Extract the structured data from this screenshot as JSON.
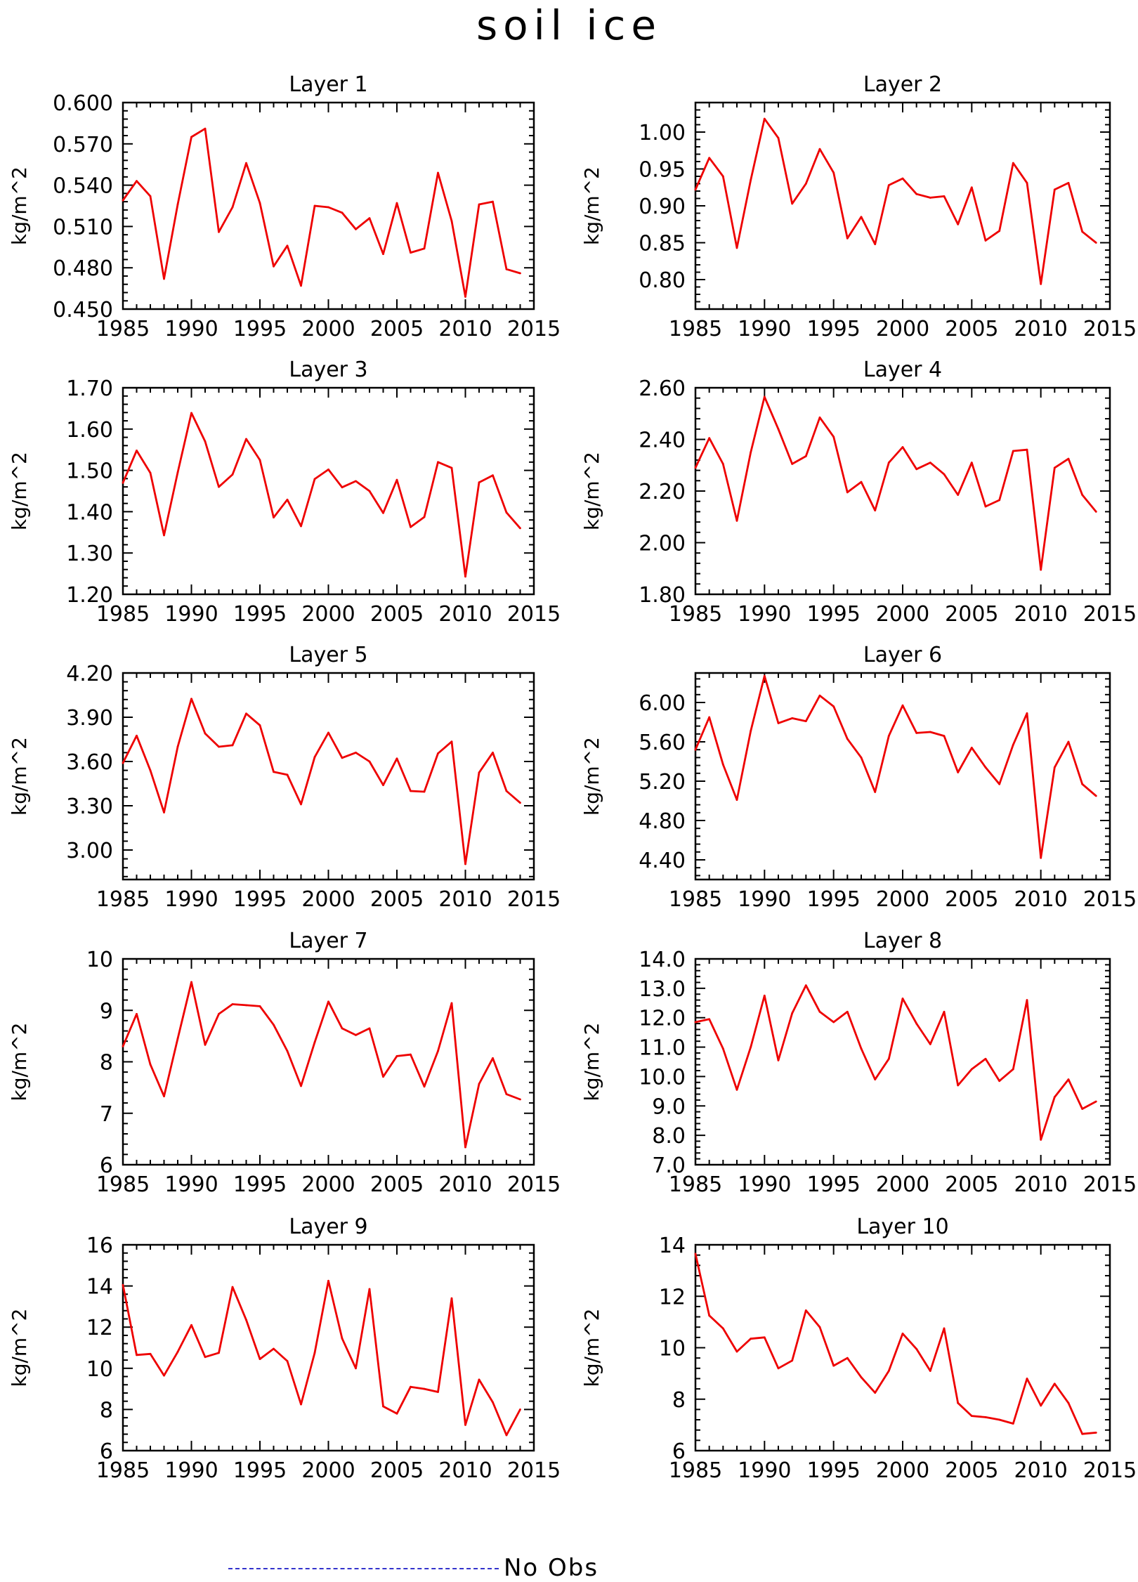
{
  "title": "soil ice",
  "legend": {
    "label": "No Obs",
    "color": "#3333cc",
    "style": "dashed"
  },
  "series_color": "#ee0000",
  "chart_data": [
    {
      "type": "line",
      "title": "Layer 1",
      "ylabel": "kg/m^2",
      "xlim": [
        1985,
        2015
      ],
      "ylim": [
        0.45,
        0.6
      ],
      "xticks": [
        1985,
        1990,
        1995,
        2000,
        2005,
        2010,
        2015
      ],
      "yticks": [
        "0.450",
        "0.480",
        "0.510",
        "0.540",
        "0.570",
        "0.600"
      ],
      "x": [
        1985,
        1986,
        1987,
        1988,
        1989,
        1990,
        1991,
        1992,
        1993,
        1994,
        1995,
        1996,
        1997,
        1998,
        1999,
        2000,
        2001,
        2002,
        2003,
        2004,
        2005,
        2006,
        2007,
        2008,
        2009,
        2010,
        2011,
        2012,
        2013,
        2014
      ],
      "values": [
        0.529,
        0.543,
        0.532,
        0.472,
        0.526,
        0.575,
        0.581,
        0.506,
        0.524,
        0.556,
        0.527,
        0.481,
        0.496,
        0.467,
        0.525,
        0.524,
        0.52,
        0.508,
        0.516,
        0.49,
        0.527,
        0.491,
        0.494,
        0.549,
        0.514,
        0.459,
        0.526,
        0.528,
        0.479,
        0.476
      ]
    },
    {
      "type": "line",
      "title": "Layer 2",
      "ylabel": "kg/m^2",
      "xlim": [
        1985,
        2015
      ],
      "ylim": [
        0.76,
        1.04
      ],
      "xticks": [
        1985,
        1990,
        1995,
        2000,
        2005,
        2010,
        2015
      ],
      "yticks": [
        "0.80",
        "0.85",
        "0.90",
        "0.95",
        "1.00"
      ],
      "x": [
        1985,
        1986,
        1987,
        1988,
        1989,
        1990,
        1991,
        1992,
        1993,
        1994,
        1995,
        1996,
        1997,
        1998,
        1999,
        2000,
        2001,
        2002,
        2003,
        2004,
        2005,
        2006,
        2007,
        2008,
        2009,
        2010,
        2011,
        2012,
        2013,
        2014
      ],
      "values": [
        0.922,
        0.965,
        0.94,
        0.843,
        0.935,
        1.018,
        0.992,
        0.903,
        0.93,
        0.977,
        0.945,
        0.856,
        0.885,
        0.848,
        0.928,
        0.937,
        0.916,
        0.911,
        0.913,
        0.875,
        0.925,
        0.853,
        0.866,
        0.958,
        0.931,
        0.794,
        0.922,
        0.931,
        0.865,
        0.85
      ]
    },
    {
      "type": "line",
      "title": "Layer 3",
      "ylabel": "kg/m^2",
      "xlim": [
        1985,
        2015
      ],
      "ylim": [
        1.2,
        1.7
      ],
      "xticks": [
        1985,
        1990,
        1995,
        2000,
        2005,
        2010,
        2015
      ],
      "yticks": [
        "1.20",
        "1.30",
        "1.40",
        "1.50",
        "1.60",
        "1.70"
      ],
      "x": [
        1985,
        1986,
        1987,
        1988,
        1989,
        1990,
        1991,
        1992,
        1993,
        1994,
        1995,
        1996,
        1997,
        1998,
        1999,
        2000,
        2001,
        2002,
        2003,
        2004,
        2005,
        2006,
        2007,
        2008,
        2009,
        2010,
        2011,
        2012,
        2013,
        2014
      ],
      "values": [
        1.47,
        1.548,
        1.494,
        1.343,
        1.495,
        1.639,
        1.57,
        1.46,
        1.49,
        1.576,
        1.525,
        1.386,
        1.429,
        1.365,
        1.479,
        1.502,
        1.459,
        1.474,
        1.45,
        1.397,
        1.477,
        1.363,
        1.387,
        1.52,
        1.506,
        1.243,
        1.471,
        1.488,
        1.398,
        1.36
      ]
    },
    {
      "type": "line",
      "title": "Layer 4",
      "ylabel": "kg/m^2",
      "xlim": [
        1985,
        2015
      ],
      "ylim": [
        1.8,
        2.6
      ],
      "xticks": [
        1985,
        1990,
        1995,
        2000,
        2005,
        2010,
        2015
      ],
      "yticks": [
        "1.80",
        "2.00",
        "2.20",
        "2.40",
        "2.60"
      ],
      "x": [
        1985,
        1986,
        1987,
        1988,
        1989,
        1990,
        1991,
        1992,
        1993,
        1994,
        1995,
        1996,
        1997,
        1998,
        1999,
        2000,
        2001,
        2002,
        2003,
        2004,
        2005,
        2006,
        2007,
        2008,
        2009,
        2010,
        2011,
        2012,
        2013,
        2014
      ],
      "values": [
        2.29,
        2.405,
        2.305,
        2.085,
        2.35,
        2.565,
        2.44,
        2.305,
        2.335,
        2.485,
        2.41,
        2.195,
        2.235,
        2.125,
        2.31,
        2.37,
        2.285,
        2.31,
        2.265,
        2.185,
        2.31,
        2.14,
        2.165,
        2.355,
        2.36,
        1.895,
        2.29,
        2.325,
        2.185,
        2.12
      ]
    },
    {
      "type": "line",
      "title": "Layer 5",
      "ylabel": "kg/m^2",
      "xlim": [
        1985,
        2015
      ],
      "ylim": [
        2.8,
        4.2
      ],
      "xticks": [
        1985,
        1990,
        1995,
        2000,
        2005,
        2010,
        2015
      ],
      "yticks": [
        "3.00",
        "3.30",
        "3.60",
        "3.90",
        "4.20"
      ],
      "x": [
        1985,
        1986,
        1987,
        1988,
        1989,
        1990,
        1991,
        1992,
        1993,
        1994,
        1995,
        1996,
        1997,
        1998,
        1999,
        2000,
        2001,
        2002,
        2003,
        2004,
        2005,
        2006,
        2007,
        2008,
        2009,
        2010,
        2011,
        2012,
        2013,
        2014
      ],
      "values": [
        3.59,
        3.775,
        3.54,
        3.255,
        3.7,
        4.025,
        3.79,
        3.7,
        3.71,
        3.925,
        3.845,
        3.53,
        3.51,
        3.31,
        3.63,
        3.795,
        3.625,
        3.66,
        3.6,
        3.44,
        3.62,
        3.4,
        3.395,
        3.655,
        3.735,
        2.905,
        3.525,
        3.66,
        3.4,
        3.32
      ]
    },
    {
      "type": "line",
      "title": "Layer 6",
      "ylabel": "kg/m^2",
      "xlim": [
        1985,
        2015
      ],
      "ylim": [
        4.2,
        6.3
      ],
      "xticks": [
        1985,
        1990,
        1995,
        2000,
        2005,
        2010,
        2015
      ],
      "yticks": [
        "4.40",
        "4.80",
        "5.20",
        "5.60",
        "6.00"
      ],
      "x": [
        1985,
        1986,
        1987,
        1988,
        1989,
        1990,
        1991,
        1992,
        1993,
        1994,
        1995,
        1996,
        1997,
        1998,
        1999,
        2000,
        2001,
        2002,
        2003,
        2004,
        2005,
        2006,
        2007,
        2008,
        2009,
        2010,
        2011,
        2012,
        2013,
        2014
      ],
      "values": [
        5.52,
        5.85,
        5.37,
        5.01,
        5.71,
        6.27,
        5.79,
        5.84,
        5.81,
        6.07,
        5.96,
        5.63,
        5.44,
        5.09,
        5.66,
        5.97,
        5.69,
        5.7,
        5.66,
        5.29,
        5.54,
        5.34,
        5.17,
        5.57,
        5.89,
        4.42,
        5.34,
        5.6,
        5.17,
        5.05
      ]
    },
    {
      "type": "line",
      "title": "Layer 7",
      "ylabel": "kg/m^2",
      "xlim": [
        1985,
        2015
      ],
      "ylim": [
        6,
        10
      ],
      "xticks": [
        1985,
        1990,
        1995,
        2000,
        2005,
        2010,
        2015
      ],
      "yticks": [
        "6",
        "7",
        "8",
        "9",
        "10"
      ],
      "x": [
        1985,
        1986,
        1987,
        1988,
        1989,
        1990,
        1991,
        1992,
        1993,
        1994,
        1995,
        1996,
        1997,
        1998,
        1999,
        2000,
        2001,
        2002,
        2003,
        2004,
        2005,
        2006,
        2007,
        2008,
        2009,
        2010,
        2011,
        2012,
        2013,
        2014
      ],
      "values": [
        8.3,
        8.93,
        7.95,
        7.33,
        8.45,
        9.55,
        8.33,
        8.93,
        9.12,
        9.1,
        9.08,
        8.72,
        8.21,
        7.53,
        8.38,
        9.17,
        8.65,
        8.52,
        8.65,
        7.71,
        8.11,
        8.14,
        7.52,
        8.21,
        9.14,
        6.34,
        7.57,
        8.07,
        7.37,
        7.27
      ]
    },
    {
      "type": "line",
      "title": "Layer 8",
      "ylabel": "kg/m^2",
      "xlim": [
        1985,
        2015
      ],
      "ylim": [
        7,
        14
      ],
      "xticks": [
        1985,
        1990,
        1995,
        2000,
        2005,
        2010,
        2015
      ],
      "yticks": [
        "7.0",
        "8.0",
        "9.0",
        "10.0",
        "11.0",
        "12.0",
        "13.0",
        "14.0"
      ],
      "x": [
        1985,
        1986,
        1987,
        1988,
        1989,
        1990,
        1991,
        1992,
        1993,
        1994,
        1995,
        1996,
        1997,
        1998,
        1999,
        2000,
        2001,
        2002,
        2003,
        2004,
        2005,
        2006,
        2007,
        2008,
        2009,
        2010,
        2011,
        2012,
        2013,
        2014
      ],
      "values": [
        11.85,
        11.95,
        10.95,
        9.55,
        11.0,
        12.75,
        10.55,
        12.15,
        13.1,
        12.2,
        11.85,
        12.2,
        10.95,
        9.9,
        10.6,
        12.65,
        11.8,
        11.1,
        12.2,
        9.7,
        10.25,
        10.6,
        9.85,
        10.25,
        12.6,
        7.85,
        9.3,
        9.9,
        8.9,
        9.15
      ]
    },
    {
      "type": "line",
      "title": "Layer 9",
      "ylabel": "kg/m^2",
      "xlim": [
        1985,
        2015
      ],
      "ylim": [
        6,
        16
      ],
      "xticks": [
        1985,
        1990,
        1995,
        2000,
        2005,
        2010,
        2015
      ],
      "yticks": [
        "6",
        "8",
        "10",
        "12",
        "14",
        "16"
      ],
      "x": [
        1985,
        1986,
        1987,
        1988,
        1989,
        1990,
        1991,
        1992,
        1993,
        1994,
        1995,
        1996,
        1997,
        1998,
        1999,
        2000,
        2001,
        2002,
        2003,
        2004,
        2005,
        2006,
        2007,
        2008,
        2009,
        2010,
        2011,
        2012,
        2013,
        2014
      ],
      "values": [
        14.05,
        10.65,
        10.7,
        9.65,
        10.8,
        12.1,
        10.55,
        10.75,
        13.95,
        12.35,
        10.45,
        10.95,
        10.35,
        8.25,
        10.75,
        14.25,
        11.45,
        10.0,
        13.85,
        8.15,
        7.8,
        9.1,
        9.0,
        8.85,
        13.4,
        7.25,
        9.45,
        8.35,
        6.75,
        8.0
      ]
    },
    {
      "type": "line",
      "title": "Layer 10",
      "ylabel": "kg/m^2",
      "xlim": [
        1985,
        2015
      ],
      "ylim": [
        6,
        14
      ],
      "xticks": [
        1985,
        1990,
        1995,
        2000,
        2005,
        2010,
        2015
      ],
      "yticks": [
        "6",
        "8",
        "10",
        "12",
        "14"
      ],
      "x": [
        1985,
        1986,
        1987,
        1988,
        1989,
        1990,
        1991,
        1992,
        1993,
        1994,
        1995,
        1996,
        1997,
        1998,
        1999,
        2000,
        2001,
        2002,
        2003,
        2004,
        2005,
        2006,
        2007,
        2008,
        2009,
        2010,
        2011,
        2012,
        2013,
        2014
      ],
      "values": [
        13.65,
        11.25,
        10.75,
        9.85,
        10.35,
        10.4,
        9.2,
        9.5,
        11.45,
        10.8,
        9.3,
        9.6,
        8.85,
        8.25,
        9.1,
        10.55,
        9.95,
        9.1,
        10.75,
        7.85,
        7.35,
        7.3,
        7.2,
        7.05,
        8.8,
        7.75,
        8.6,
        7.85,
        6.65,
        6.7
      ]
    }
  ]
}
